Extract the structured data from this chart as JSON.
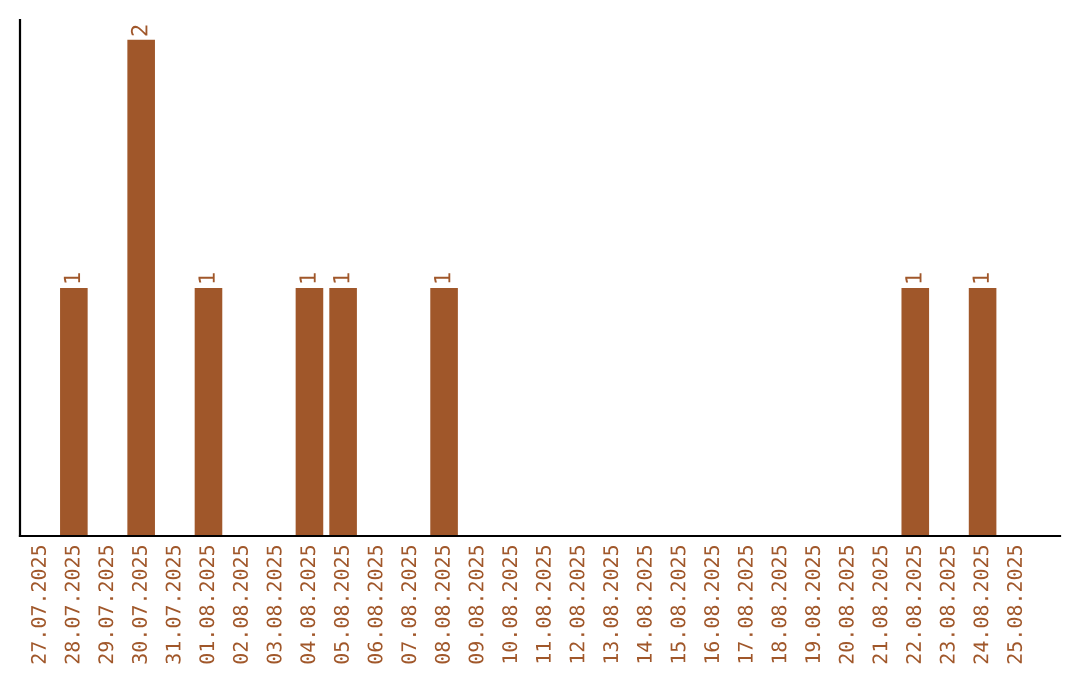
{
  "chart_data": {
    "type": "bar",
    "categories": [
      "27.07.2025",
      "28.07.2025",
      "29.07.2025",
      "30.07.2025",
      "31.07.2025",
      "01.08.2025",
      "02.08.2025",
      "03.08.2025",
      "04.08.2025",
      "05.08.2025",
      "06.08.2025",
      "07.08.2025",
      "08.08.2025",
      "09.08.2025",
      "10.08.2025",
      "11.08.2025",
      "12.08.2025",
      "13.08.2025",
      "14.08.2025",
      "15.08.2025",
      "16.08.2025",
      "17.08.2025",
      "18.08.2025",
      "19.08.2025",
      "20.08.2025",
      "21.08.2025",
      "22.08.2025",
      "23.08.2025",
      "24.08.2025",
      "25.08.2025"
    ],
    "values": [
      0,
      1,
      0,
      2,
      0,
      1,
      0,
      0,
      1,
      1,
      0,
      0,
      1,
      0,
      0,
      0,
      0,
      0,
      0,
      0,
      0,
      0,
      0,
      0,
      0,
      0,
      1,
      0,
      1,
      0
    ],
    "value_labels": [
      null,
      "1",
      null,
      "2",
      null,
      "1",
      null,
      null,
      "1",
      "1",
      null,
      null,
      "1",
      null,
      null,
      null,
      null,
      null,
      null,
      null,
      null,
      null,
      null,
      null,
      null,
      null,
      "1",
      null,
      "1",
      null
    ],
    "color": "#a0572a",
    "ylim": [
      0,
      2.08
    ],
    "tick_labels": "x",
    "grid": false
  }
}
